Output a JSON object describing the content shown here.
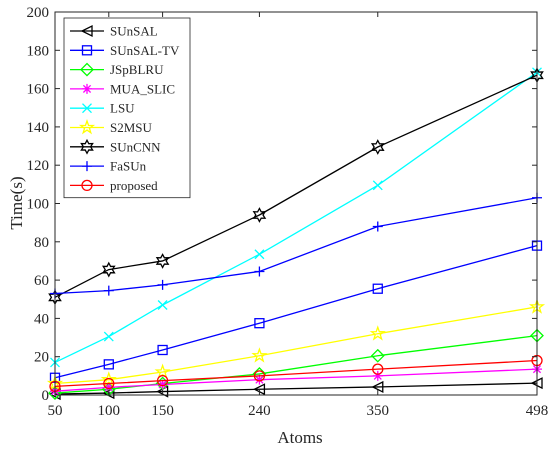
{
  "chart_data": {
    "type": "line",
    "xlabel": "Atoms",
    "ylabel": "Time(s)",
    "x": [
      50,
      100,
      150,
      240,
      350,
      498
    ],
    "xticks": [
      "50",
      "100",
      "150",
      "240",
      "350",
      "498"
    ],
    "ylim": [
      0,
      200
    ],
    "yticks": [
      "0",
      "20",
      "40",
      "60",
      "80",
      "100",
      "120",
      "140",
      "160",
      "180",
      "200"
    ],
    "grid": false,
    "legend_position": "top-left",
    "series": [
      {
        "name": "SUnSAL",
        "color": "#000000",
        "marker": "triangle-left",
        "values": [
          0.5,
          1.0,
          1.8,
          3.0,
          4.2,
          6.2
        ]
      },
      {
        "name": "SUnSAL-TV",
        "color": "#0000ff",
        "marker": "square",
        "values": [
          9.0,
          16.0,
          23.5,
          37.5,
          55.5,
          78.0
        ]
      },
      {
        "name": "JSpBLRU",
        "color": "#00ff00",
        "marker": "diamond",
        "values": [
          1.0,
          3.0,
          6.0,
          11.0,
          20.5,
          31.0
        ]
      },
      {
        "name": "MUA_SLIC",
        "color": "#ff00ff",
        "marker": "asterisk",
        "values": [
          2.0,
          4.0,
          5.5,
          8.0,
          10.0,
          13.5
        ]
      },
      {
        "name": "LSU",
        "color": "#00ffff",
        "marker": "x",
        "values": [
          17.0,
          30.5,
          47.0,
          73.5,
          109.5,
          168.5
        ]
      },
      {
        "name": "S2MSU",
        "color": "#ffff00",
        "marker": "pentagram",
        "values": [
          6.0,
          8.0,
          12.0,
          20.5,
          32.0,
          46.0
        ]
      },
      {
        "name": "SUnCNN",
        "color": "#000000",
        "marker": "hexagram",
        "values": [
          51.0,
          65.5,
          70.0,
          94.0,
          129.5,
          167.0
        ]
      },
      {
        "name": "FaSUn",
        "color": "#0000ff",
        "marker": "plus",
        "values": [
          53.0,
          54.5,
          57.5,
          64.5,
          88.0,
          103.0
        ]
      },
      {
        "name": "proposed",
        "color": "#ff0000",
        "marker": "circle",
        "values": [
          4.5,
          6.0,
          7.5,
          10.0,
          13.5,
          18.0
        ]
      }
    ]
  }
}
